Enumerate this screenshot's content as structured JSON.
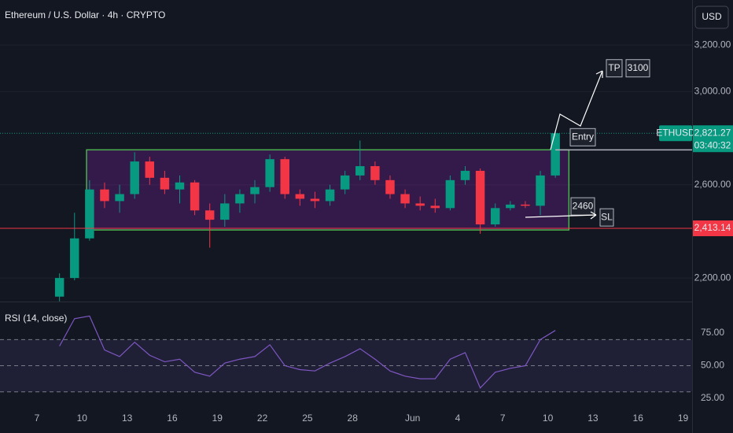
{
  "header": {
    "title": "Ethereum / U.S. Dollar · 4h · CRYPTO",
    "currency": "USD"
  },
  "chart_data": [
    {
      "type": "candlestick",
      "x": [
        8.5,
        9.5,
        10.5,
        11.5,
        12.5,
        13.5,
        14.5,
        15.5,
        16.5,
        17.5,
        18.5,
        19.5,
        20.5,
        21.5,
        22.5,
        23.5,
        24.5,
        25.5,
        26.5,
        27.5,
        28.5,
        29.5,
        30.5,
        31.5,
        32.5,
        33.5,
        34.5,
        35.5,
        36.5,
        37.5,
        38.5,
        39.5,
        40.5,
        41.5
      ],
      "open": [
        2120,
        2200,
        2370,
        2580,
        2530,
        2560,
        2700,
        2630,
        2580,
        2610,
        2490,
        2450,
        2520,
        2560,
        2590,
        2710,
        2560,
        2540,
        2530,
        2580,
        2640,
        2680,
        2620,
        2560,
        2520,
        2510,
        2500,
        2620,
        2660,
        2430,
        2500,
        2515,
        2510,
        2640
      ],
      "high": [
        2220,
        2480,
        2620,
        2610,
        2600,
        2740,
        2720,
        2660,
        2640,
        2620,
        2520,
        2560,
        2580,
        2620,
        2730,
        2720,
        2580,
        2570,
        2600,
        2660,
        2790,
        2700,
        2640,
        2580,
        2550,
        2540,
        2640,
        2680,
        2670,
        2520,
        2530,
        2530,
        2660,
        2830
      ],
      "low": [
        2100,
        2190,
        2360,
        2500,
        2480,
        2540,
        2600,
        2560,
        2520,
        2470,
        2330,
        2420,
        2480,
        2520,
        2570,
        2540,
        2510,
        2500,
        2510,
        2560,
        2620,
        2600,
        2540,
        2500,
        2490,
        2480,
        2490,
        2600,
        2390,
        2420,
        2490,
        2500,
        2470,
        2630
      ],
      "close": [
        2200,
        2370,
        2580,
        2530,
        2560,
        2700,
        2630,
        2580,
        2610,
        2490,
        2450,
        2520,
        2560,
        2590,
        2710,
        2560,
        2540,
        2530,
        2580,
        2640,
        2680,
        2620,
        2560,
        2520,
        2510,
        2500,
        2620,
        2660,
        2430,
        2500,
        2515,
        2510,
        2640,
        2821.27
      ],
      "up_color": "#089981",
      "down_color": "#f23645",
      "xlim": [
        4.54,
        50.6
      ],
      "ylim": [
        2099,
        3393
      ],
      "yticks": [
        {
          "value": 2200,
          "label": "2,200.00"
        },
        {
          "value": 2600,
          "label": "2,600.00"
        },
        {
          "value": 3000,
          "label": "3,000.00"
        },
        {
          "value": 3200,
          "label": "3,200.00"
        }
      ],
      "last_price": {
        "symbol": "ETHUSD",
        "value": 2821.27,
        "label": "2,821.27",
        "countdown": "03:40:32",
        "color": "#089981"
      },
      "stop_line": {
        "value": 2413.14,
        "label": "2,413.14",
        "color": "#f23645"
      },
      "range_box": {
        "x": [
          10.3,
          42.4
        ],
        "y": [
          2406,
          2750
        ],
        "color": "#4caf50"
      },
      "entry": {
        "label": "Entry",
        "value": 2750
      },
      "take_profit": {
        "label": "TP",
        "value": 3100
      },
      "stop_loss": {
        "label": "SL",
        "value": 2460
      }
    },
    {
      "type": "line",
      "title": "RSI (14, close)",
      "x": [
        8.5,
        9.5,
        10.5,
        11.5,
        12.5,
        13.5,
        14.5,
        15.5,
        16.5,
        17.5,
        18.5,
        19.5,
        20.5,
        21.5,
        22.5,
        23.5,
        24.5,
        25.5,
        26.5,
        27.5,
        28.5,
        29.5,
        30.5,
        31.5,
        32.5,
        33.5,
        34.5,
        35.5,
        36.5,
        37.5,
        38.5,
        39.5,
        40.5,
        41.5
      ],
      "values": [
        65,
        86,
        88,
        62,
        57,
        68,
        58,
        53,
        55,
        45,
        42,
        52,
        55,
        57,
        66,
        50,
        47,
        46,
        52,
        57,
        63,
        55,
        46,
        42,
        40,
        40,
        55,
        60,
        33,
        45,
        48,
        50,
        70,
        77
      ],
      "color": "#7e57c2",
      "levels": [
        30,
        50,
        70
      ],
      "xlim": [
        4.54,
        50.6
      ],
      "ylim": [
        19.6,
        99.1
      ],
      "yticks": [
        {
          "value": 25,
          "label": "25.00"
        },
        {
          "value": 50,
          "label": "50.00"
        },
        {
          "value": 75,
          "label": "75.00"
        }
      ],
      "xticks": [
        7,
        10,
        13,
        16,
        19,
        22,
        25,
        28,
        {
          "value": 32,
          "label": "Jun"
        },
        {
          "value": 35,
          "label": "4"
        },
        {
          "value": 38,
          "label": "7"
        },
        {
          "value": 41,
          "label": "10"
        },
        {
          "value": 44,
          "label": "13"
        },
        {
          "value": 47,
          "label": "16"
        },
        {
          "value": 50,
          "label": "19"
        }
      ]
    }
  ]
}
